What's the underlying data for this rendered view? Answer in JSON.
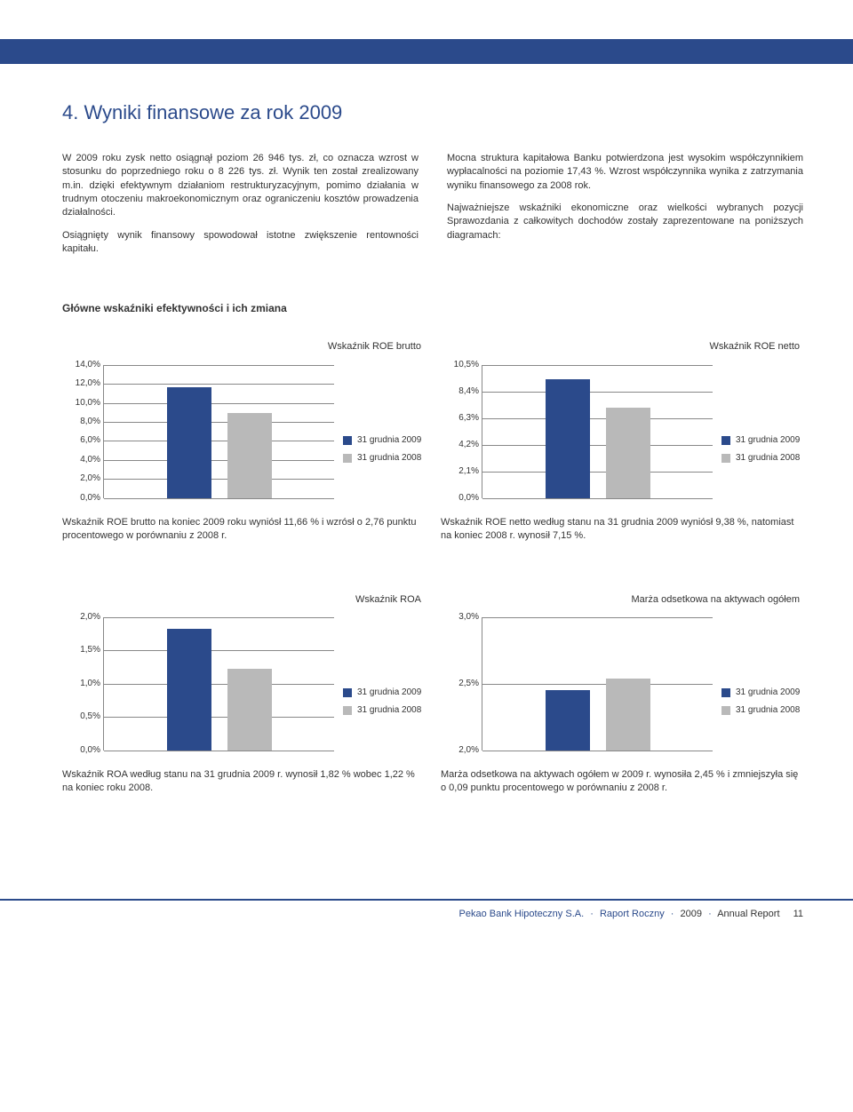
{
  "colors": {
    "brand": "#2b4a8b",
    "series_2009": "#2b4a8b",
    "series_2008": "#b9b9b9",
    "grid": "#888888",
    "text": "#333333"
  },
  "heading": "4. Wyniki finansowe za rok 2009",
  "left_paragraphs": [
    "W 2009 roku zysk netto osiągnął poziom 26 946 tys. zł, co oznacza wzrost w stosunku do poprzedniego roku o 8 226 tys. zł. Wynik ten został zrealizowany m.in. dzięki efektywnym działaniom restrukturyzacyjnym, pomimo działania w trudnym otoczeniu makroekonomicznym oraz ograniczeniu kosztów prowadzenia działalności.",
    "Osiągnięty wynik finansowy spowodował istotne zwiększenie rentowności kapitału."
  ],
  "right_paragraphs": [
    "Mocna struktura kapitałowa Banku potwierdzona jest wysokim współczynnikiem wypłacalności na poziomie 17,43 %. Wzrost współczynnika wynika z zatrzymania wyniku finansowego za 2008 rok.",
    "Najważniejsze wskaźniki ekonomiczne oraz wielkości wybranych pozycji Sprawozdania z całkowitych dochodów zostały zaprezentowane na poniższych diagramach:"
  ],
  "section_heading": "Główne wskaźniki efektywności i ich zmiana",
  "legend": {
    "series_2009": "31 grudnia 2009",
    "series_2008": "31 grudnia 2008"
  },
  "charts": {
    "roe_brutto": {
      "type": "bar",
      "title": "Wskaźnik ROE brutto",
      "y_min": 0,
      "y_max": 14,
      "y_step": 2,
      "tick_suffix": ",0%",
      "values": {
        "v2009": 11.66,
        "v2008": 8.9
      },
      "caption": "Wskaźnik ROE brutto na koniec 2009 roku wyniósł 11,66 % i wzrósł o 2,76 punktu procentowego w porównaniu z 2008 r."
    },
    "roe_netto": {
      "type": "bar",
      "title": "Wskaźnik ROE netto",
      "y_min": 0,
      "y_max": 10.5,
      "y_step": 2.1,
      "tick_suffix": "%",
      "ticks_explicit": [
        "0,0%",
        "2,1%",
        "4,2%",
        "6,3%",
        "8,4%",
        "10,5%"
      ],
      "values": {
        "v2009": 9.38,
        "v2008": 7.15
      },
      "caption": "Wskaźnik ROE netto według stanu na 31 grudnia 2009 wyniósł 9,38 %, natomiast na koniec 2008 r. wynosił 7,15 %."
    },
    "roa": {
      "type": "bar",
      "title": "Wskaźnik ROA",
      "y_min": 0,
      "y_max": 2,
      "y_step": 0.5,
      "tick_suffix": "%",
      "ticks_explicit": [
        "0,0%",
        "0,5%",
        "1,0%",
        "1,5%",
        "2,0%"
      ],
      "values": {
        "v2009": 1.82,
        "v2008": 1.22
      },
      "caption": "Wskaźnik ROA według stanu na 31 grudnia 2009 r. wynosił 1,82 % wobec 1,22 % na koniec roku 2008."
    },
    "marza": {
      "type": "bar",
      "title": "Marża odsetkowa na aktywach ogółem",
      "y_min": 2,
      "y_max": 3,
      "y_step": 0.5,
      "tick_suffix": "%",
      "ticks_explicit": [
        "2,0%",
        "2,5%",
        "3,0%"
      ],
      "values": {
        "v2009": 2.45,
        "v2008": 2.54
      },
      "caption": "Marża odsetkowa na aktywach ogółem w 2009 r. wynosiła 2,45 % i zmniejszyła się o 0,09 punktu procentowego w porównaniu z 2008 r."
    }
  },
  "footer": {
    "company": "Pekao Bank Hipoteczny S.A.",
    "report_pl": "Raport Roczny",
    "year": "2009",
    "report_en": "Annual Report",
    "page": "11"
  }
}
